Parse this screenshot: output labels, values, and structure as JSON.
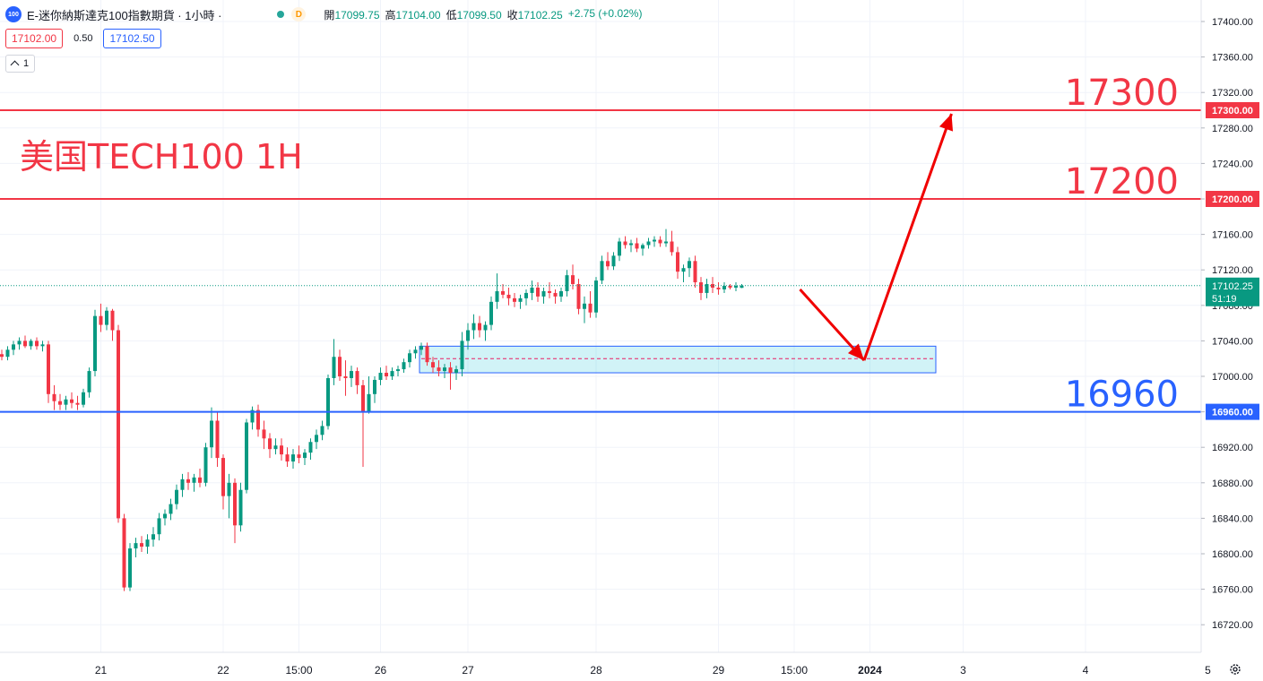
{
  "header": {
    "symbol_badge": "100",
    "title": "E-迷你納斯達克100指數期貨 · 1小時 ·",
    "status_letter": "D",
    "ohlc": [
      {
        "k": "開",
        "v": "17099.75"
      },
      {
        "k": "高",
        "v": "17104.00"
      },
      {
        "k": "低",
        "v": "17099.50"
      },
      {
        "k": "收",
        "v": "17102.25"
      }
    ],
    "change": "+2.75 (+0.02%)"
  },
  "order": {
    "sell_price": "17102.00",
    "spread": "0.50",
    "buy_price": "17102.50"
  },
  "indicator": {
    "count": "1"
  },
  "chart_data": {
    "type": "candlestick",
    "title": "美国TECH100 1H",
    "y_axis": {
      "range": [
        16700,
        17410
      ],
      "ticks": [
        16720,
        16760,
        16800,
        16840,
        16880,
        16920,
        16960,
        17000,
        17040,
        17080,
        17120,
        17160,
        17200,
        17240,
        17280,
        17320,
        17360,
        17400
      ],
      "tick_labels": [
        "16720.00",
        "16760.00",
        "16800.00",
        "16840.00",
        "16880.00",
        "16920.00",
        "16960.00",
        "17000.00",
        "17040.00",
        "17080.00",
        "17120.00",
        "17160.00",
        "17200.00",
        "17240.00",
        "17280.00",
        "17320.00",
        "17360.00",
        "17400.00"
      ]
    },
    "x_axis": {
      "labels": [
        {
          "text": "21",
          "bar": 17
        },
        {
          "text": "22",
          "bar": 38
        },
        {
          "text": "15:00",
          "bar": 51
        },
        {
          "text": "26",
          "bar": 65
        },
        {
          "text": "27",
          "bar": 80
        },
        {
          "text": "28",
          "bar": 102
        },
        {
          "text": "29",
          "bar": 123
        },
        {
          "text": "15:00",
          "bar": 136
        },
        {
          "text": "2024",
          "bar": 149,
          "bold": true
        },
        {
          "text": "3",
          "bar": 165
        },
        {
          "text": "4",
          "bar": 186
        },
        {
          "text": "5",
          "bar": 207
        }
      ]
    },
    "candles": [
      [
        17025,
        17030,
        17018,
        17022
      ],
      [
        17022,
        17034,
        17018,
        17030
      ],
      [
        17030,
        17040,
        17024,
        17036
      ],
      [
        17036,
        17044,
        17030,
        17040
      ],
      [
        17040,
        17046,
        17032,
        17034
      ],
      [
        17034,
        17042,
        17030,
        17040
      ],
      [
        17040,
        17044,
        17030,
        17034
      ],
      [
        17034,
        17040,
        17028,
        17036
      ],
      [
        17036,
        17040,
        16970,
        16980
      ],
      [
        16980,
        16990,
        16962,
        16972
      ],
      [
        16972,
        16980,
        16962,
        16968
      ],
      [
        16968,
        16978,
        16962,
        16974
      ],
      [
        16974,
        16982,
        16964,
        16970
      ],
      [
        16970,
        16978,
        16962,
        16968
      ],
      [
        16968,
        16986,
        16965,
        16982
      ],
      [
        16982,
        17010,
        16976,
        17006
      ],
      [
        17006,
        17075,
        17000,
        17068
      ],
      [
        17068,
        17082,
        17050,
        17058
      ],
      [
        17058,
        17078,
        17052,
        17074
      ],
      [
        17074,
        17076,
        17040,
        17052
      ],
      [
        17052,
        17058,
        16835,
        16840
      ],
      [
        16840,
        16845,
        16758,
        16762
      ],
      [
        16762,
        16812,
        16758,
        16806
      ],
      [
        16806,
        16818,
        16796,
        16812
      ],
      [
        16812,
        16820,
        16802,
        16808
      ],
      [
        16808,
        16822,
        16800,
        16816
      ],
      [
        16816,
        16830,
        16808,
        16822
      ],
      [
        16822,
        16846,
        16815,
        16840
      ],
      [
        16840,
        16850,
        16832,
        16845
      ],
      [
        16845,
        16862,
        16838,
        16856
      ],
      [
        16856,
        16878,
        16850,
        16872
      ],
      [
        16872,
        16890,
        16864,
        16884
      ],
      [
        16884,
        16892,
        16872,
        16880
      ],
      [
        16880,
        16890,
        16870,
        16886
      ],
      [
        16886,
        16896,
        16875,
        16880
      ],
      [
        16880,
        16925,
        16876,
        16920
      ],
      [
        16920,
        16965,
        16908,
        16950
      ],
      [
        16950,
        16960,
        16898,
        16908
      ],
      [
        16908,
        16912,
        16850,
        16865
      ],
      [
        16865,
        16890,
        16840,
        16880
      ],
      [
        16880,
        16885,
        16812,
        16832
      ],
      [
        16832,
        16880,
        16825,
        16872
      ],
      [
        16872,
        16952,
        16868,
        16948
      ],
      [
        16948,
        16966,
        16940,
        16962
      ],
      [
        16962,
        16968,
        16932,
        16940
      ],
      [
        16940,
        16950,
        16918,
        16930
      ],
      [
        16930,
        16936,
        16908,
        16918
      ],
      [
        16918,
        16930,
        16912,
        16922
      ],
      [
        16922,
        16930,
        16905,
        16912
      ],
      [
        16912,
        16920,
        16898,
        16904
      ],
      [
        16904,
        16918,
        16896,
        16912
      ],
      [
        16912,
        16922,
        16902,
        16908
      ],
      [
        16908,
        16918,
        16900,
        16914
      ],
      [
        16914,
        16930,
        16906,
        16926
      ],
      [
        16926,
        16940,
        16918,
        16934
      ],
      [
        16934,
        16950,
        16928,
        16944
      ],
      [
        16944,
        17002,
        16940,
        16998
      ],
      [
        16998,
        17042,
        16990,
        17022
      ],
      [
        17022,
        17030,
        16995,
        17000
      ],
      [
        17000,
        17018,
        16978,
        16998
      ],
      [
        16998,
        17012,
        16988,
        17006
      ],
      [
        17006,
        17010,
        16980,
        16990
      ],
      [
        16990,
        16996,
        16898,
        16960
      ],
      [
        16960,
        17000,
        16958,
        16980
      ],
      [
        16980,
        17000,
        16970,
        16996
      ],
      [
        16996,
        17010,
        16990,
        17004
      ],
      [
        17004,
        17012,
        16996,
        17000
      ],
      [
        17000,
        17010,
        16996,
        17006
      ],
      [
        17006,
        17012,
        17000,
        17008
      ],
      [
        17008,
        17020,
        17004,
        17016
      ],
      [
        17016,
        17030,
        17010,
        17026
      ],
      [
        17026,
        17034,
        17020,
        17030
      ],
      [
        17030,
        17038,
        17024,
        17034
      ],
      [
        17034,
        17038,
        17012,
        17016
      ],
      [
        17016,
        17022,
        17004,
        17010
      ],
      [
        17010,
        17018,
        17000,
        17006
      ],
      [
        17006,
        17014,
        16998,
        17010
      ],
      [
        17010,
        17016,
        16985,
        17004
      ],
      [
        17004,
        17012,
        16996,
        17008
      ],
      [
        17008,
        17050,
        17000,
        17040
      ],
      [
        17040,
        17060,
        17030,
        17052
      ],
      [
        17052,
        17070,
        17042,
        17060
      ],
      [
        17060,
        17068,
        17044,
        17052
      ],
      [
        17052,
        17062,
        17040,
        17058
      ],
      [
        17058,
        17090,
        17052,
        17084
      ],
      [
        17084,
        17116,
        17076,
        17096
      ],
      [
        17096,
        17104,
        17088,
        17092
      ],
      [
        17092,
        17100,
        17080,
        17088
      ],
      [
        17088,
        17094,
        17078,
        17084
      ],
      [
        17084,
        17092,
        17076,
        17088
      ],
      [
        17088,
        17098,
        17080,
        17094
      ],
      [
        17094,
        17108,
        17086,
        17100
      ],
      [
        17100,
        17106,
        17084,
        17090
      ],
      [
        17090,
        17100,
        17082,
        17096
      ],
      [
        17096,
        17106,
        17088,
        17094
      ],
      [
        17094,
        17098,
        17082,
        17090
      ],
      [
        17090,
        17100,
        17084,
        17096
      ],
      [
        17096,
        17120,
        17090,
        17114
      ],
      [
        17114,
        17126,
        17098,
        17104
      ],
      [
        17104,
        17110,
        17070,
        17076
      ],
      [
        17076,
        17090,
        17060,
        17082
      ],
      [
        17082,
        17096,
        17066,
        17072
      ],
      [
        17072,
        17112,
        17066,
        17108
      ],
      [
        17108,
        17136,
        17104,
        17130
      ],
      [
        17130,
        17140,
        17120,
        17124
      ],
      [
        17124,
        17140,
        17120,
        17136
      ],
      [
        17136,
        17156,
        17130,
        17152
      ],
      [
        17152,
        17158,
        17144,
        17148
      ],
      [
        17148,
        17154,
        17140,
        17150
      ],
      [
        17150,
        17156,
        17140,
        17144
      ],
      [
        17144,
        17150,
        17136,
        17148
      ],
      [
        17148,
        17156,
        17144,
        17152
      ],
      [
        17152,
        17158,
        17146,
        17154
      ],
      [
        17154,
        17158,
        17146,
        17150
      ],
      [
        17150,
        17166,
        17146,
        17152
      ],
      [
        17152,
        17164,
        17136,
        17140
      ],
      [
        17140,
        17146,
        17110,
        17118
      ],
      [
        17118,
        17126,
        17106,
        17122
      ],
      [
        17122,
        17134,
        17112,
        17130
      ],
      [
        17130,
        17136,
        17100,
        17106
      ],
      [
        17106,
        17112,
        17086,
        17094
      ],
      [
        17094,
        17110,
        17088,
        17104
      ],
      [
        17104,
        17112,
        17094,
        17100
      ],
      [
        17100,
        17106,
        17092,
        17098
      ],
      [
        17098,
        17106,
        17094,
        17102
      ],
      [
        17102,
        17104,
        17098,
        17100
      ],
      [
        17100,
        17106,
        17096,
        17102
      ],
      [
        17099.75,
        17104,
        17099.5,
        17102.25
      ]
    ],
    "levels": [
      {
        "value": 17300,
        "label": "17300",
        "axis_label": "17300.00",
        "color": "#f23645"
      },
      {
        "value": 17200,
        "label": "17200",
        "axis_label": "17200.00",
        "color": "#f23645"
      },
      {
        "value": 16960,
        "label": "16960",
        "axis_label": "16960.00",
        "color": "#2962ff"
      }
    ],
    "current_price": {
      "value": 17102.25,
      "label": "17102.25",
      "countdown": "51:19",
      "color": "#089981"
    },
    "zone": {
      "from_bar": 72,
      "to_bar": 160,
      "low": 17004,
      "high": 17034,
      "mid": 17020
    },
    "arrows": [
      {
        "from": [
          137,
          17098
        ],
        "to": [
          148,
          17018
        ],
        "color": "#f00000"
      },
      {
        "from": [
          148,
          17018
        ],
        "to": [
          163,
          17296
        ],
        "color": "#f00000"
      }
    ],
    "colors": {
      "up": "#089981",
      "down": "#f23645",
      "grid": "#f0f3fa",
      "axis_text": "#131722"
    }
  }
}
